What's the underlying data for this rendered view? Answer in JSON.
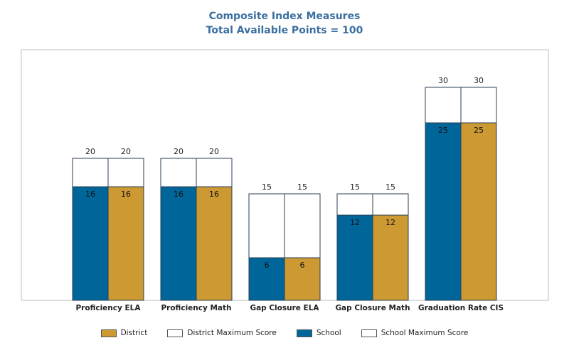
{
  "colors": {
    "title": "#3b6fa0",
    "school": "#006699",
    "district": "#cc9933",
    "max_fill": "#ffffff",
    "outline": "#2a3f55",
    "frame": "#bfbfbf"
  },
  "legend": {
    "items": [
      {
        "label": "District",
        "color": "#cc9933"
      },
      {
        "label": "District Maximum Score",
        "color": "#ffffff"
      },
      {
        "label": "School",
        "color": "#006699"
      },
      {
        "label": "School Maximum Score",
        "color": "#ffffff"
      }
    ]
  },
  "chart_data": {
    "type": "bar",
    "title": "Composite Index Measures",
    "subtitle": "Total Available Points = 100",
    "categories": [
      "Proficiency ELA",
      "Proficiency Math",
      "Gap Closure ELA",
      "Gap Closure Math",
      "Graduation Rate CIS"
    ],
    "series": [
      {
        "name": "School",
        "values": [
          16,
          16,
          6,
          12,
          25
        ],
        "max": [
          20,
          20,
          15,
          15,
          30
        ]
      },
      {
        "name": "District",
        "values": [
          16,
          16,
          6,
          12,
          25
        ],
        "max": [
          20,
          20,
          15,
          15,
          30
        ]
      }
    ],
    "ylim": [
      0,
      36
    ],
    "grid": false,
    "legend_position": "bottom"
  }
}
